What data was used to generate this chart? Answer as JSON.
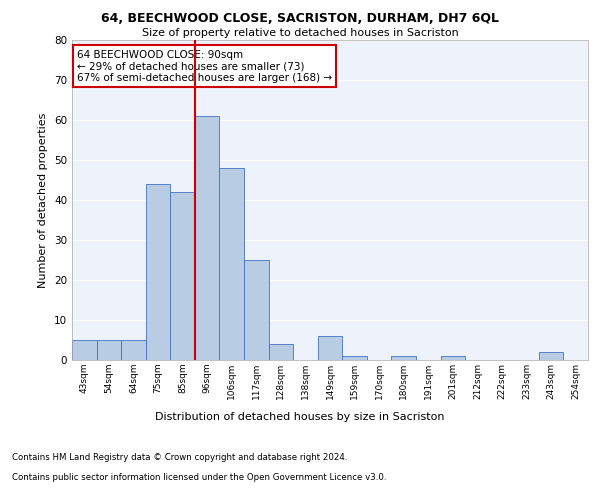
{
  "title1": "64, BEECHWOOD CLOSE, SACRISTON, DURHAM, DH7 6QL",
  "title2": "Size of property relative to detached houses in Sacriston",
  "xlabel": "Distribution of detached houses by size in Sacriston",
  "ylabel": "Number of detached properties",
  "bin_labels": [
    "43sqm",
    "54sqm",
    "64sqm",
    "75sqm",
    "85sqm",
    "96sqm",
    "106sqm",
    "117sqm",
    "128sqm",
    "138sqm",
    "149sqm",
    "159sqm",
    "170sqm",
    "180sqm",
    "191sqm",
    "201sqm",
    "212sqm",
    "222sqm",
    "233sqm",
    "243sqm",
    "254sqm"
  ],
  "bar_values": [
    5,
    5,
    5,
    44,
    42,
    61,
    48,
    25,
    4,
    0,
    6,
    1,
    0,
    1,
    0,
    1,
    0,
    0,
    0,
    2,
    0
  ],
  "bar_color": "#b8cce4",
  "bar_edge_color": "#4472c4",
  "background_color": "#eef2fb",
  "grid_color": "#ffffff",
  "annotation_text": "64 BEECHWOOD CLOSE: 90sqm\n← 29% of detached houses are smaller (73)\n67% of semi-detached houses are larger (168) →",
  "annotation_box_color": "#ffffff",
  "annotation_box_edge": "#cc0000",
  "vline_color": "#cc0000",
  "ylim": [
    0,
    80
  ],
  "yticks": [
    0,
    10,
    20,
    30,
    40,
    50,
    60,
    70,
    80
  ],
  "footer1": "Contains HM Land Registry data © Crown copyright and database right 2024.",
  "footer2": "Contains public sector information licensed under the Open Government Licence v3.0."
}
